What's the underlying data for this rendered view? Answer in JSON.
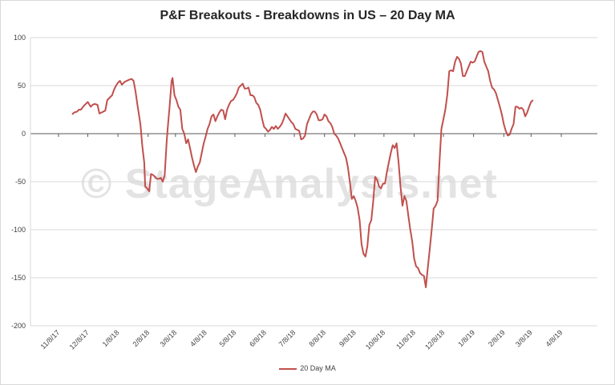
{
  "chart_data": {
    "type": "line",
    "title": "P&F Breakouts - Breakdowns in US – 20 Day MA",
    "watermark": "© StageAnalysis.net",
    "ylim": [
      -200,
      100
    ],
    "yticks": [
      100,
      50,
      0,
      -50,
      -100,
      -150,
      -200
    ],
    "grid": true,
    "legend_position": "bottom",
    "x_tick_labels": [
      "11/8/17",
      "12/8/17",
      "1/8/18",
      "2/8/18",
      "3/8/18",
      "4/8/18",
      "5/8/18",
      "6/8/18",
      "7/8/18",
      "8/8/18",
      "9/8/18",
      "10/8/18",
      "11/8/18",
      "12/8/18",
      "1/8/19",
      "2/8/19",
      "3/8/19",
      "4/8/19"
    ],
    "x_tick_dates": [
      "2017-11-08",
      "2017-12-08",
      "2018-01-08",
      "2018-02-08",
      "2018-03-08",
      "2018-04-08",
      "2018-05-08",
      "2018-06-08",
      "2018-07-08",
      "2018-08-08",
      "2018-09-08",
      "2018-10-08",
      "2018-11-08",
      "2018-12-08",
      "2019-01-08",
      "2019-02-08",
      "2019-03-08",
      "2019-04-08"
    ],
    "series": [
      {
        "name": "20 Day MA",
        "color": "#c0504d",
        "points": [
          [
            "2017-11-22",
            20
          ],
          [
            "2017-11-24",
            22
          ],
          [
            "2017-11-27",
            23
          ],
          [
            "2017-11-29",
            25
          ],
          [
            "2017-12-01",
            25
          ],
          [
            "2017-12-04",
            29
          ],
          [
            "2017-12-06",
            31
          ],
          [
            "2017-12-08",
            33
          ],
          [
            "2017-12-11",
            28
          ],
          [
            "2017-12-13",
            30
          ],
          [
            "2017-12-15",
            31
          ],
          [
            "2017-12-18",
            30
          ],
          [
            "2017-12-20",
            21
          ],
          [
            "2017-12-22",
            22
          ],
          [
            "2017-12-26",
            24
          ],
          [
            "2017-12-28",
            35
          ],
          [
            "2018-01-02",
            40
          ],
          [
            "2018-01-04",
            46
          ],
          [
            "2018-01-06",
            50
          ],
          [
            "2018-01-08",
            53
          ],
          [
            "2018-01-10",
            55
          ],
          [
            "2018-01-12",
            51
          ],
          [
            "2018-01-15",
            54
          ],
          [
            "2018-01-17",
            55
          ],
          [
            "2018-01-19",
            56
          ],
          [
            "2018-01-22",
            57
          ],
          [
            "2018-01-24",
            55
          ],
          [
            "2018-01-26",
            44
          ],
          [
            "2018-01-28",
            30
          ],
          [
            "2018-01-31",
            10
          ],
          [
            "2018-02-02",
            -13
          ],
          [
            "2018-02-04",
            -30
          ],
          [
            "2018-02-05",
            -55
          ],
          [
            "2018-02-07",
            -57
          ],
          [
            "2018-02-09",
            -60
          ],
          [
            "2018-02-11",
            -42
          ],
          [
            "2018-02-13",
            -43
          ],
          [
            "2018-02-15",
            -45
          ],
          [
            "2018-02-17",
            -47
          ],
          [
            "2018-02-19",
            -47
          ],
          [
            "2018-02-21",
            -46
          ],
          [
            "2018-02-23",
            -50
          ],
          [
            "2018-02-25",
            -43
          ],
          [
            "2018-02-27",
            -8
          ],
          [
            "2018-02-28",
            5
          ],
          [
            "2018-03-02",
            28
          ],
          [
            "2018-03-04",
            55
          ],
          [
            "2018-03-05",
            58
          ],
          [
            "2018-03-07",
            40
          ],
          [
            "2018-03-09",
            35
          ],
          [
            "2018-03-11",
            28
          ],
          [
            "2018-03-13",
            25
          ],
          [
            "2018-03-15",
            5
          ],
          [
            "2018-03-17",
            0
          ],
          [
            "2018-03-19",
            -10
          ],
          [
            "2018-03-21",
            -6
          ],
          [
            "2018-03-23",
            -15
          ],
          [
            "2018-03-25",
            -25
          ],
          [
            "2018-03-27",
            -33
          ],
          [
            "2018-03-29",
            -40
          ],
          [
            "2018-03-31",
            -34
          ],
          [
            "2018-04-02",
            -30
          ],
          [
            "2018-04-04",
            -20
          ],
          [
            "2018-04-06",
            -10
          ],
          [
            "2018-04-08",
            -3
          ],
          [
            "2018-04-10",
            5
          ],
          [
            "2018-04-12",
            10
          ],
          [
            "2018-04-14",
            18
          ],
          [
            "2018-04-16",
            20
          ],
          [
            "2018-04-18",
            13
          ],
          [
            "2018-04-20",
            18
          ],
          [
            "2018-04-22",
            22
          ],
          [
            "2018-04-24",
            25
          ],
          [
            "2018-04-26",
            24
          ],
          [
            "2018-04-28",
            15
          ],
          [
            "2018-04-30",
            25
          ],
          [
            "2018-05-02",
            30
          ],
          [
            "2018-05-04",
            34
          ],
          [
            "2018-05-06",
            35
          ],
          [
            "2018-05-08",
            38
          ],
          [
            "2018-05-10",
            42
          ],
          [
            "2018-05-12",
            48
          ],
          [
            "2018-05-14",
            50
          ],
          [
            "2018-05-16",
            52
          ],
          [
            "2018-05-18",
            47
          ],
          [
            "2018-05-20",
            47
          ],
          [
            "2018-05-22",
            48
          ],
          [
            "2018-05-24",
            40
          ],
          [
            "2018-05-26",
            40
          ],
          [
            "2018-05-28",
            38
          ],
          [
            "2018-05-30",
            32
          ],
          [
            "2018-06-01",
            30
          ],
          [
            "2018-06-03",
            25
          ],
          [
            "2018-06-05",
            15
          ],
          [
            "2018-06-07",
            7
          ],
          [
            "2018-06-09",
            5
          ],
          [
            "2018-06-11",
            2
          ],
          [
            "2018-06-13",
            4
          ],
          [
            "2018-06-15",
            7
          ],
          [
            "2018-06-17",
            5
          ],
          [
            "2018-06-19",
            8
          ],
          [
            "2018-06-21",
            5
          ],
          [
            "2018-06-23",
            7
          ],
          [
            "2018-06-25",
            10
          ],
          [
            "2018-06-27",
            15
          ],
          [
            "2018-06-29",
            21
          ],
          [
            "2018-07-01",
            18
          ],
          [
            "2018-07-03",
            15
          ],
          [
            "2018-07-05",
            12
          ],
          [
            "2018-07-07",
            10
          ],
          [
            "2018-07-09",
            5
          ],
          [
            "2018-07-11",
            4
          ],
          [
            "2018-07-13",
            3
          ],
          [
            "2018-07-15",
            -6
          ],
          [
            "2018-07-17",
            -5
          ],
          [
            "2018-07-19",
            -2
          ],
          [
            "2018-07-21",
            10
          ],
          [
            "2018-07-23",
            15
          ],
          [
            "2018-07-25",
            20
          ],
          [
            "2018-07-27",
            23
          ],
          [
            "2018-07-29",
            23
          ],
          [
            "2018-07-31",
            20
          ],
          [
            "2018-08-02",
            14
          ],
          [
            "2018-08-04",
            14
          ],
          [
            "2018-08-06",
            15
          ],
          [
            "2018-08-08",
            20
          ],
          [
            "2018-08-10",
            18
          ],
          [
            "2018-08-12",
            13
          ],
          [
            "2018-08-14",
            11
          ],
          [
            "2018-08-16",
            7
          ],
          [
            "2018-08-18",
            0
          ],
          [
            "2018-08-20",
            -2
          ],
          [
            "2018-08-22",
            -5
          ],
          [
            "2018-08-24",
            -10
          ],
          [
            "2018-08-26",
            -15
          ],
          [
            "2018-08-28",
            -20
          ],
          [
            "2018-08-30",
            -25
          ],
          [
            "2018-09-01",
            -35
          ],
          [
            "2018-09-03",
            -50
          ],
          [
            "2018-09-05",
            -68
          ],
          [
            "2018-09-07",
            -65
          ],
          [
            "2018-09-09",
            -70
          ],
          [
            "2018-09-11",
            -77
          ],
          [
            "2018-09-13",
            -90
          ],
          [
            "2018-09-15",
            -115
          ],
          [
            "2018-09-17",
            -125
          ],
          [
            "2018-09-19",
            -128
          ],
          [
            "2018-09-21",
            -117
          ],
          [
            "2018-09-23",
            -95
          ],
          [
            "2018-09-25",
            -90
          ],
          [
            "2018-09-27",
            -70
          ],
          [
            "2018-09-29",
            -45
          ],
          [
            "2018-10-01",
            -48
          ],
          [
            "2018-10-03",
            -55
          ],
          [
            "2018-10-05",
            -57
          ],
          [
            "2018-10-07",
            -52
          ],
          [
            "2018-10-09",
            -52
          ],
          [
            "2018-10-11",
            -40
          ],
          [
            "2018-10-13",
            -30
          ],
          [
            "2018-10-15",
            -20
          ],
          [
            "2018-10-17",
            -12
          ],
          [
            "2018-10-19",
            -15
          ],
          [
            "2018-10-21",
            -10
          ],
          [
            "2018-10-23",
            -30
          ],
          [
            "2018-10-25",
            -55
          ],
          [
            "2018-10-27",
            -75
          ],
          [
            "2018-10-29",
            -65
          ],
          [
            "2018-10-31",
            -70
          ],
          [
            "2018-11-02",
            -85
          ],
          [
            "2018-11-04",
            -100
          ],
          [
            "2018-11-06",
            -112
          ],
          [
            "2018-11-08",
            -130
          ],
          [
            "2018-11-10",
            -138
          ],
          [
            "2018-11-12",
            -140
          ],
          [
            "2018-11-14",
            -145
          ],
          [
            "2018-11-16",
            -147
          ],
          [
            "2018-11-18",
            -148
          ],
          [
            "2018-11-20",
            -160
          ],
          [
            "2018-11-22",
            -140
          ],
          [
            "2018-11-24",
            -120
          ],
          [
            "2018-11-26",
            -100
          ],
          [
            "2018-11-28",
            -78
          ],
          [
            "2018-11-30",
            -75
          ],
          [
            "2018-12-02",
            -70
          ],
          [
            "2018-12-04",
            -30
          ],
          [
            "2018-12-06",
            5
          ],
          [
            "2018-12-08",
            15
          ],
          [
            "2018-12-10",
            25
          ],
          [
            "2018-12-12",
            40
          ],
          [
            "2018-12-14",
            65
          ],
          [
            "2018-12-16",
            66
          ],
          [
            "2018-12-18",
            65
          ],
          [
            "2018-12-20",
            75
          ],
          [
            "2018-12-22",
            80
          ],
          [
            "2018-12-24",
            78
          ],
          [
            "2018-12-26",
            73
          ],
          [
            "2018-12-28",
            60
          ],
          [
            "2018-12-30",
            60
          ],
          [
            "2019-01-01",
            65
          ],
          [
            "2019-01-03",
            70
          ],
          [
            "2019-01-05",
            75
          ],
          [
            "2019-01-07",
            74
          ],
          [
            "2019-01-09",
            75
          ],
          [
            "2019-01-11",
            80
          ],
          [
            "2019-01-13",
            85
          ],
          [
            "2019-01-15",
            86
          ],
          [
            "2019-01-17",
            85
          ],
          [
            "2019-01-19",
            75
          ],
          [
            "2019-01-21",
            70
          ],
          [
            "2019-01-23",
            65
          ],
          [
            "2019-01-25",
            55
          ],
          [
            "2019-01-27",
            48
          ],
          [
            "2019-01-29",
            46
          ],
          [
            "2019-01-31",
            42
          ],
          [
            "2019-02-02",
            35
          ],
          [
            "2019-02-04",
            28
          ],
          [
            "2019-02-06",
            20
          ],
          [
            "2019-02-08",
            10
          ],
          [
            "2019-02-10",
            3
          ],
          [
            "2019-02-12",
            -2
          ],
          [
            "2019-02-14",
            -1
          ],
          [
            "2019-02-16",
            5
          ],
          [
            "2019-02-18",
            10
          ],
          [
            "2019-02-20",
            28
          ],
          [
            "2019-02-22",
            28
          ],
          [
            "2019-02-24",
            26
          ],
          [
            "2019-02-26",
            27
          ],
          [
            "2019-02-28",
            25
          ],
          [
            "2019-03-02",
            18
          ],
          [
            "2019-03-04",
            22
          ],
          [
            "2019-03-06",
            28
          ],
          [
            "2019-03-08",
            33
          ],
          [
            "2019-03-10",
            35
          ]
        ]
      }
    ]
  },
  "legend": {
    "label": "20 Day MA"
  }
}
